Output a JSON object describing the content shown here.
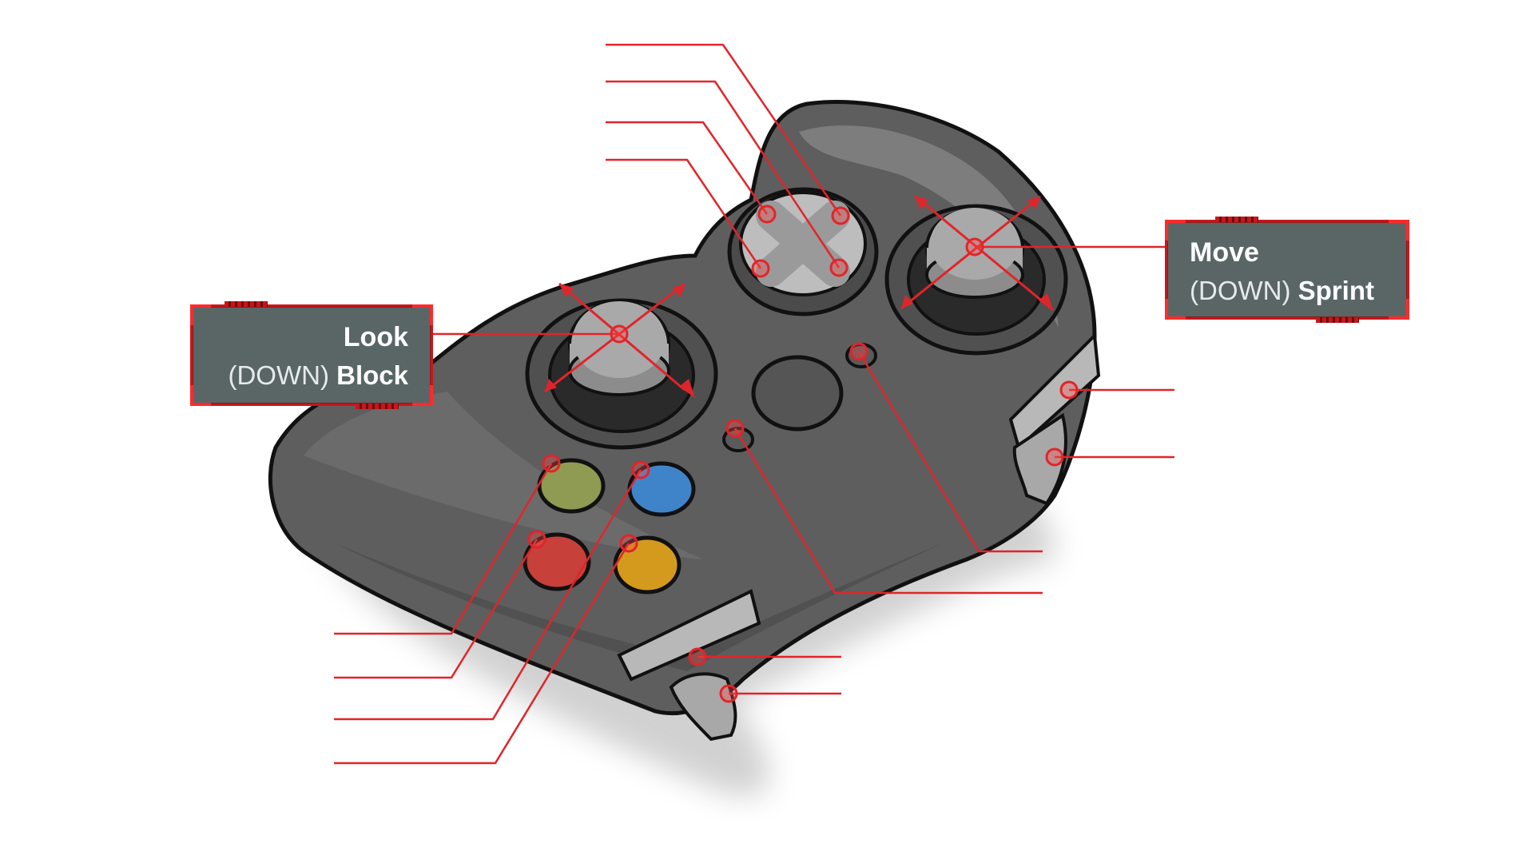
{
  "callouts": {
    "look": {
      "action": "Look",
      "modifier": "(DOWN)",
      "alt_action": "Block"
    },
    "move": {
      "action": "Move",
      "modifier": "(DOWN)",
      "alt_action": "Sprint"
    }
  },
  "colors": {
    "leader_line": "#e0252a",
    "callout_border": "#c8161a",
    "callout_fill": "#5a6666",
    "controller_body": "#5e5e5e",
    "button_a_green": "#8f9a52",
    "button_b_blue": "#3f84c9",
    "button_x_red": "#c8403a",
    "button_y_yellow": "#d39a1e"
  },
  "icons": [
    "gamepad-icon",
    "left-stick-icon",
    "right-stick-icon",
    "dpad-icon"
  ]
}
